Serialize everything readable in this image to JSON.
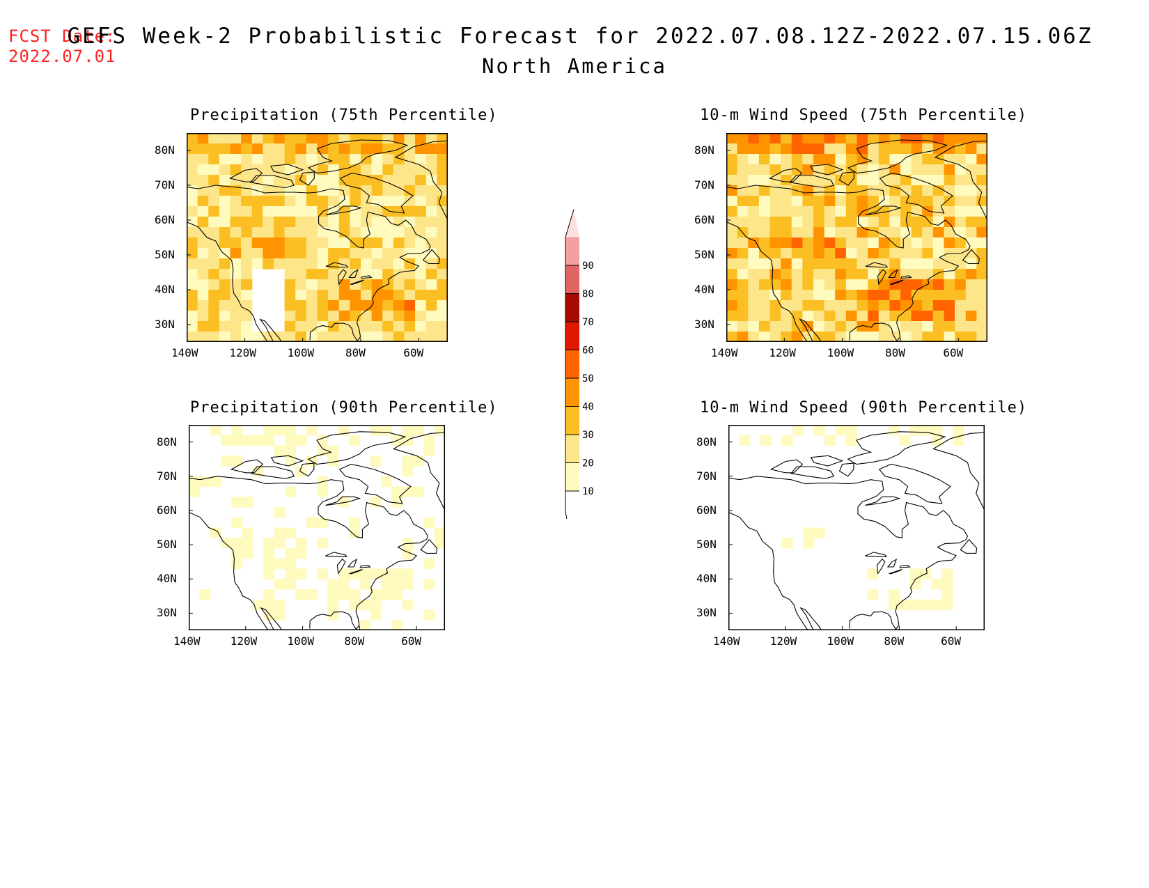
{
  "header": {
    "fcst_label": "FCST Date:",
    "fcst_date": "2022.07.01",
    "title": "GEFS Week-2 Probabilistic Forecast for 2022.07.08.12Z-2022.07.15.06Z",
    "region": "North America"
  },
  "panels": [
    {
      "title": "Precipitation (75th Percentile)",
      "intensity": 0.75
    },
    {
      "title": "10-m Wind Speed (75th Percentile)",
      "intensity": 0.85
    },
    {
      "title": "Precipitation (90th Percentile)",
      "intensity": 0.25
    },
    {
      "title": "10-m Wind Speed (90th Percentile)",
      "intensity": 0.22
    }
  ],
  "axes": {
    "lat_ticks": [
      "80N",
      "70N",
      "60N",
      "50N",
      "40N",
      "30N"
    ],
    "lon_ticks": [
      "140W",
      "120W",
      "100W",
      "80W",
      "60W"
    ]
  },
  "legend": {
    "levels": [
      "10",
      "20",
      "30",
      "40",
      "50",
      "60",
      "70",
      "80",
      "90"
    ],
    "colors": [
      "#fffabe",
      "#fde68a",
      "#fbbf24",
      "#ff9400",
      "#ff6400",
      "#e01800",
      "#a60c00",
      "#e06464",
      "#f5a0a0",
      "#fde0e0"
    ]
  }
}
